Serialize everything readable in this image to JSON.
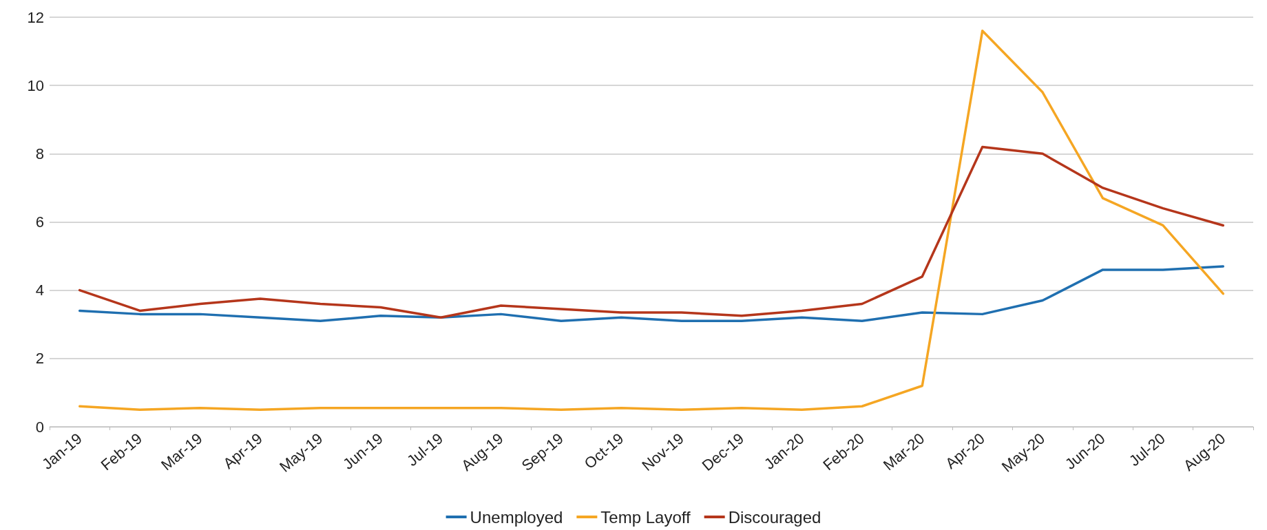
{
  "chart_data": {
    "type": "line",
    "categories": [
      "Jan-19",
      "Feb-19",
      "Mar-19",
      "Apr-19",
      "May-19",
      "Jun-19",
      "Jul-19",
      "Aug-19",
      "Sep-19",
      "Oct-19",
      "Nov-19",
      "Dec-19",
      "Jan-20",
      "Feb-20",
      "Mar-20",
      "Apr-20",
      "May-20",
      "Jun-20",
      "Jul-20",
      "Aug-20"
    ],
    "series": [
      {
        "name": "Unemployed",
        "color": "#1f6fb0",
        "values": [
          3.4,
          3.3,
          3.3,
          3.2,
          3.1,
          3.25,
          3.2,
          3.3,
          3.1,
          3.2,
          3.1,
          3.1,
          3.2,
          3.1,
          3.35,
          3.3,
          3.7,
          4.6,
          4.6,
          4.7
        ]
      },
      {
        "name": "Temp Layoff",
        "color": "#f5a623",
        "values": [
          0.6,
          0.5,
          0.55,
          0.5,
          0.55,
          0.55,
          0.55,
          0.55,
          0.5,
          0.55,
          0.5,
          0.55,
          0.5,
          0.6,
          1.2,
          11.6,
          9.8,
          6.7,
          5.9,
          3.9
        ]
      },
      {
        "name": "Discouraged",
        "color": "#b5361b",
        "values": [
          4.0,
          3.4,
          3.6,
          3.75,
          3.6,
          3.5,
          3.2,
          3.55,
          3.45,
          3.35,
          3.35,
          3.25,
          3.4,
          3.6,
          4.4,
          8.2,
          8.0,
          7.0,
          6.4,
          5.9
        ]
      }
    ],
    "ylim": [
      0,
      12
    ],
    "yticks": [
      0,
      2,
      4,
      6,
      8,
      10,
      12
    ],
    "grid": "y",
    "legend": "bottom",
    "marker": "none",
    "line_style": "solid"
  }
}
